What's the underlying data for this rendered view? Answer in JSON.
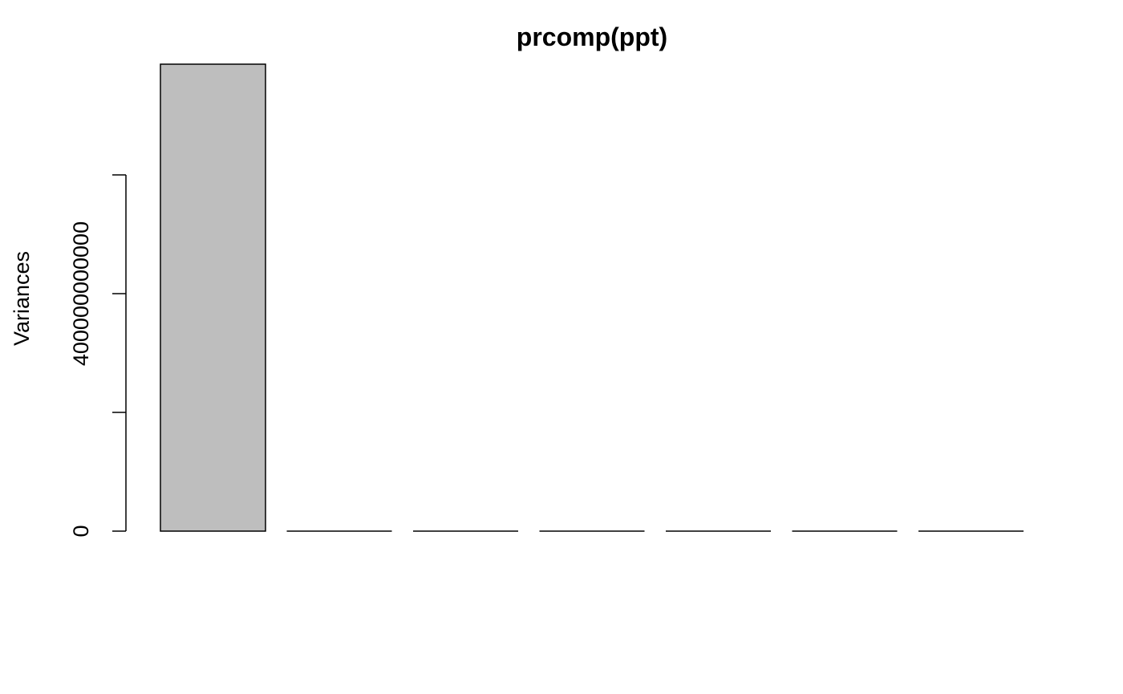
{
  "chart_data": {
    "type": "bar",
    "title": "prcomp(ppt)",
    "y_label": "Variances",
    "categories": [
      null,
      null,
      null,
      null,
      null,
      null,
      null
    ],
    "values": [
      786500000000,
      0,
      0,
      0,
      0,
      0,
      0
    ],
    "color": "#bebebe",
    "ylim": [
      0,
      786500000000
    ],
    "yticks": [
      0,
      400000000000
    ],
    "minor_yticks": [
      200000000000,
      600000000000
    ],
    "grid": false
  }
}
